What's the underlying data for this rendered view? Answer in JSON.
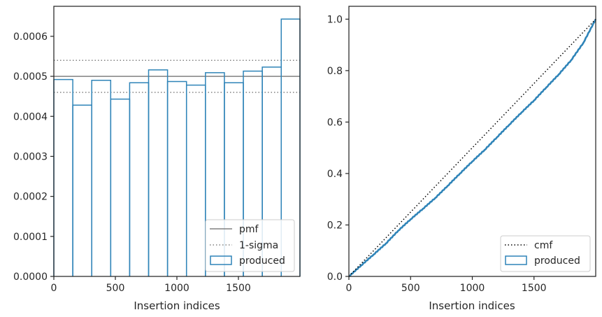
{
  "colors": {
    "hist": "#2f84b8",
    "pmf": "#808080",
    "sigma": "#808080",
    "cmf": "#000000",
    "axes": "#262626",
    "legend_border": "#cccccc"
  },
  "chart_data": [
    {
      "type": "histogram",
      "xlabel": "Insertion indices",
      "ylabel": "",
      "xlim": [
        0,
        2000
      ],
      "ylim": [
        0,
        0.000675
      ],
      "xticks": [
        0,
        500,
        1000,
        1500
      ],
      "xtick_labels": [
        "0",
        "500",
        "1000",
        "1500"
      ],
      "yticks": [
        0,
        0.0001,
        0.0002,
        0.0003,
        0.0004,
        0.0005,
        0.0006
      ],
      "ytick_labels": [
        "0.0000",
        "0.0001",
        "0.0002",
        "0.0003",
        "0.0004",
        "0.0005",
        "0.0006"
      ],
      "bin_edges": [
        0,
        154,
        308,
        462,
        616,
        770,
        924,
        1078,
        1232,
        1386,
        1540,
        1694,
        1848,
        2000
      ],
      "values": [
        0.000492,
        0.000428,
        0.00049,
        0.000443,
        0.000484,
        0.000516,
        0.000487,
        0.000478,
        0.000509,
        0.000484,
        0.000513,
        0.000523,
        0.000643
      ],
      "pmf": 0.0005,
      "sigma_band": [
        0.00046,
        0.00054
      ],
      "legend": [
        "pmf",
        "1-sigma",
        "produced"
      ],
      "legend_position": "lower-right",
      "grid": false
    },
    {
      "type": "line",
      "xlabel": "Insertion indices",
      "ylabel": "",
      "xlim": [
        0,
        2000
      ],
      "ylim": [
        0,
        1.05
      ],
      "xticks": [
        0,
        500,
        1000,
        1500
      ],
      "xtick_labels": [
        "0",
        "500",
        "1000",
        "1500"
      ],
      "yticks": [
        0,
        0.2,
        0.4,
        0.6,
        0.8,
        1.0
      ],
      "ytick_labels": [
        "0.0",
        "0.2",
        "0.4",
        "0.6",
        "0.8",
        "1.0"
      ],
      "series": [
        {
          "name": "cmf",
          "x": [
            0,
            2000
          ],
          "y": [
            0,
            1.0
          ]
        },
        {
          "name": "produced",
          "x": [
            0,
            100,
            200,
            300,
            400,
            500,
            600,
            700,
            800,
            900,
            1000,
            1100,
            1200,
            1300,
            1400,
            1500,
            1600,
            1700,
            1800,
            1900,
            2000
          ],
          "y": [
            0,
            0.043,
            0.085,
            0.128,
            0.178,
            0.222,
            0.263,
            0.305,
            0.352,
            0.4,
            0.447,
            0.492,
            0.541,
            0.59,
            0.638,
            0.684,
            0.735,
            0.785,
            0.84,
            0.908,
            1.0
          ]
        }
      ],
      "legend": [
        "cmf",
        "produced"
      ],
      "legend_position": "lower-right",
      "grid": false
    }
  ]
}
